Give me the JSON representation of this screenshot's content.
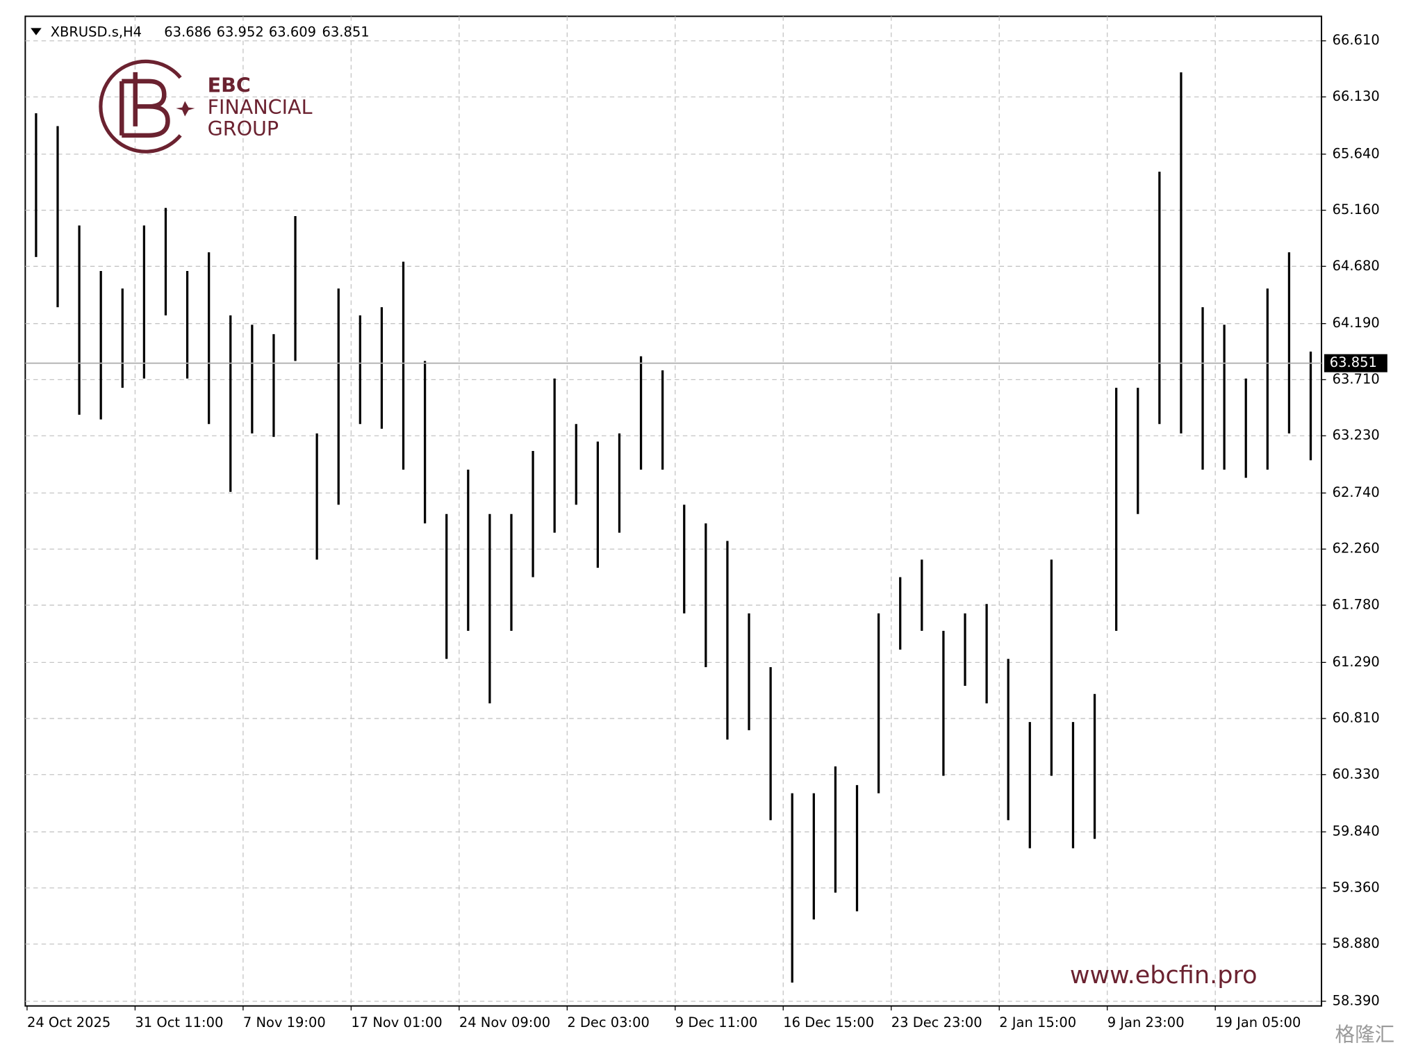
{
  "chart_data": {
    "type": "range_bar",
    "symbol": "XBRUSD.s,H4",
    "header_values": [
      63.686,
      63.952,
      63.609,
      63.851
    ],
    "logo": {
      "line1": "EBC",
      "line2": "FINANCIAL",
      "line3": "GROUP"
    },
    "watermark": "www.ebcfin.pro",
    "corner_mark": "格隆汇",
    "current_price": {
      "value": 63.851,
      "label": "63.851"
    },
    "grid": true,
    "color": "#000000",
    "categories": [
      "24 Oct 2025",
      null,
      null,
      null,
      null,
      "31 Oct 11:00",
      null,
      null,
      null,
      null,
      "7 Nov 19:00",
      null,
      null,
      null,
      null,
      "17 Nov 01:00",
      null,
      null,
      null,
      null,
      "24 Nov 09:00",
      null,
      null,
      null,
      null,
      "2 Dec 03:00",
      null,
      null,
      null,
      null,
      "9 Dec 11:00",
      null,
      null,
      null,
      null,
      "16 Dec 15:00",
      null,
      null,
      null,
      null,
      "23 Dec 23:00",
      null,
      null,
      null,
      null,
      "2 Jan 15:00",
      null,
      null,
      null,
      null,
      "9 Jan 23:00",
      null,
      null,
      null,
      null,
      "19 Jan 05:00",
      null,
      null,
      null,
      null
    ],
    "high": [
      65.99,
      65.88,
      65.03,
      64.64,
      64.49,
      65.03,
      65.18,
      64.64,
      64.8,
      64.26,
      64.18,
      64.1,
      65.11,
      63.25,
      64.49,
      64.26,
      64.33,
      64.72,
      63.87,
      62.56,
      62.94,
      62.56,
      62.56,
      63.1,
      63.72,
      63.33,
      63.18,
      63.25,
      63.91,
      63.79,
      62.64,
      62.48,
      62.33,
      61.71,
      61.25,
      60.17,
      60.17,
      60.4,
      60.24,
      61.71,
      62.02,
      62.17,
      61.56,
      61.71,
      61.79,
      61.32,
      60.78,
      62.17,
      60.78,
      61.02,
      63.64,
      63.64,
      65.49,
      66.34,
      64.33,
      64.18,
      63.72,
      64.49,
      64.8,
      63.95
    ],
    "low": [
      64.76,
      64.33,
      63.41,
      63.37,
      63.64,
      63.72,
      64.26,
      63.72,
      63.33,
      62.75,
      63.25,
      63.22,
      63.87,
      62.17,
      62.64,
      63.33,
      63.29,
      62.94,
      62.48,
      61.32,
      61.56,
      60.94,
      61.56,
      62.02,
      62.4,
      62.64,
      62.1,
      62.4,
      62.94,
      62.94,
      61.71,
      61.25,
      60.63,
      60.71,
      59.94,
      58.55,
      59.09,
      59.32,
      59.16,
      60.17,
      61.4,
      61.56,
      60.32,
      61.09,
      60.94,
      59.94,
      59.7,
      60.32,
      59.7,
      59.78,
      61.56,
      62.56,
      63.33,
      63.25,
      62.94,
      62.94,
      62.87,
      62.94,
      63.25,
      63.02
    ],
    "ylim": [
      58.35,
      66.82
    ],
    "yticks": [
      {
        "value": 66.61,
        "label": "66.610"
      },
      {
        "value": 66.13,
        "label": "66.130"
      },
      {
        "value": 65.64,
        "label": "65.640"
      },
      {
        "value": 65.16,
        "label": "65.160"
      },
      {
        "value": 64.68,
        "label": "64.680"
      },
      {
        "value": 64.19,
        "label": "64.190"
      },
      {
        "value": 63.71,
        "label": "63.710"
      },
      {
        "value": 63.23,
        "label": "63.230"
      },
      {
        "value": 62.74,
        "label": "62.740"
      },
      {
        "value": 62.26,
        "label": "62.260"
      },
      {
        "value": 61.78,
        "label": "61.780"
      },
      {
        "value": 61.29,
        "label": "61.290"
      },
      {
        "value": 60.81,
        "label": "60.810"
      },
      {
        "value": 60.33,
        "label": "60.330"
      },
      {
        "value": 59.84,
        "label": "59.840"
      },
      {
        "value": 59.36,
        "label": "59.360"
      },
      {
        "value": 58.88,
        "label": "58.880"
      },
      {
        "value": 58.39,
        "label": "58.390"
      }
    ]
  }
}
